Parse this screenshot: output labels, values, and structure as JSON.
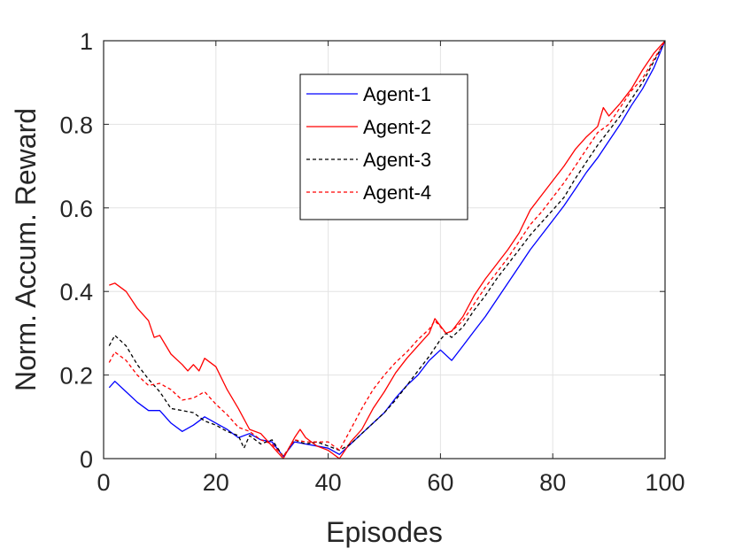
{
  "chart_data": {
    "type": "line",
    "title": "",
    "xlabel": "Episodes",
    "ylabel": "Norm. Accum. Reward",
    "xlim": [
      0,
      100
    ],
    "ylim": [
      0,
      1
    ],
    "xticks": [
      "0",
      "20",
      "40",
      "60",
      "80",
      "100"
    ],
    "yticks": [
      "0",
      "0.2",
      "0.4",
      "0.6",
      "0.8",
      "1"
    ],
    "grid": true,
    "legend_position": "top-center",
    "series": [
      {
        "name": "Agent-1",
        "color": "#0000ff",
        "dash": "solid",
        "x": [
          1,
          2,
          4,
          6,
          8,
          10,
          12,
          14,
          16,
          18,
          20,
          22,
          24,
          26,
          28,
          30,
          32,
          34,
          36,
          38,
          40,
          42,
          44,
          46,
          48,
          50,
          52,
          54,
          56,
          58,
          60,
          62,
          64,
          66,
          68,
          70,
          72,
          74,
          76,
          78,
          80,
          82,
          84,
          86,
          88,
          90,
          92,
          94,
          96,
          98,
          100
        ],
        "y": [
          0.17,
          0.185,
          0.16,
          0.135,
          0.115,
          0.115,
          0.085,
          0.065,
          0.08,
          0.1,
          0.085,
          0.07,
          0.05,
          0.06,
          0.045,
          0.04,
          0.005,
          0.04,
          0.035,
          0.03,
          0.025,
          0.01,
          0.035,
          0.06,
          0.085,
          0.11,
          0.145,
          0.175,
          0.2,
          0.235,
          0.26,
          0.235,
          0.27,
          0.305,
          0.34,
          0.38,
          0.42,
          0.46,
          0.5,
          0.535,
          0.57,
          0.605,
          0.645,
          0.685,
          0.72,
          0.76,
          0.8,
          0.845,
          0.885,
          0.935,
          1.0
        ]
      },
      {
        "name": "Agent-2",
        "color": "#ff0000",
        "dash": "solid",
        "x": [
          1,
          2,
          4,
          6,
          8,
          9,
          10,
          12,
          14,
          15,
          16,
          17,
          18,
          20,
          22,
          24,
          26,
          28,
          30,
          32,
          34,
          35,
          36,
          38,
          40,
          42,
          44,
          46,
          48,
          50,
          52,
          54,
          56,
          58,
          59,
          61,
          62,
          64,
          66,
          68,
          70,
          72,
          74,
          76,
          78,
          80,
          82,
          84,
          86,
          88,
          89,
          90,
          92,
          94,
          96,
          98,
          100
        ],
        "y": [
          0.415,
          0.42,
          0.4,
          0.36,
          0.33,
          0.29,
          0.295,
          0.25,
          0.225,
          0.21,
          0.225,
          0.21,
          0.24,
          0.22,
          0.165,
          0.12,
          0.07,
          0.06,
          0.03,
          0.0,
          0.05,
          0.07,
          0.05,
          0.03,
          0.02,
          0.0,
          0.04,
          0.07,
          0.12,
          0.16,
          0.205,
          0.24,
          0.27,
          0.3,
          0.335,
          0.3,
          0.305,
          0.34,
          0.39,
          0.43,
          0.465,
          0.5,
          0.54,
          0.595,
          0.63,
          0.665,
          0.7,
          0.74,
          0.77,
          0.795,
          0.84,
          0.82,
          0.85,
          0.885,
          0.93,
          0.97,
          1.0
        ]
      },
      {
        "name": "Agent-3",
        "color": "#000000",
        "dash": "4,3",
        "x": [
          1,
          2,
          4,
          6,
          8,
          10,
          12,
          14,
          16,
          18,
          20,
          22,
          24,
          25,
          26,
          28,
          30,
          32,
          34,
          36,
          38,
          40,
          42,
          44,
          46,
          48,
          50,
          52,
          54,
          56,
          58,
          60,
          61,
          62,
          64,
          66,
          68,
          70,
          72,
          74,
          76,
          78,
          80,
          82,
          84,
          86,
          88,
          90,
          92,
          94,
          96,
          98,
          100
        ],
        "y": [
          0.27,
          0.295,
          0.27,
          0.225,
          0.19,
          0.16,
          0.12,
          0.115,
          0.11,
          0.09,
          0.08,
          0.065,
          0.055,
          0.025,
          0.055,
          0.035,
          0.045,
          0.005,
          0.045,
          0.035,
          0.04,
          0.03,
          0.02,
          0.035,
          0.06,
          0.085,
          0.11,
          0.14,
          0.175,
          0.21,
          0.245,
          0.285,
          0.3,
          0.29,
          0.315,
          0.355,
          0.39,
          0.43,
          0.465,
          0.5,
          0.535,
          0.565,
          0.595,
          0.625,
          0.67,
          0.71,
          0.75,
          0.785,
          0.82,
          0.86,
          0.9,
          0.95,
          1.0
        ]
      },
      {
        "name": "Agent-4",
        "color": "#ff0000",
        "dash": "4,3",
        "x": [
          1,
          2,
          4,
          6,
          8,
          10,
          12,
          14,
          16,
          18,
          20,
          22,
          24,
          26,
          28,
          30,
          32,
          34,
          36,
          38,
          40,
          42,
          44,
          46,
          48,
          50,
          52,
          54,
          56,
          58,
          59,
          61,
          62,
          64,
          66,
          68,
          70,
          72,
          74,
          76,
          78,
          80,
          82,
          84,
          86,
          88,
          90,
          92,
          94,
          96,
          98,
          100
        ],
        "y": [
          0.23,
          0.255,
          0.235,
          0.2,
          0.175,
          0.18,
          0.165,
          0.14,
          0.145,
          0.16,
          0.13,
          0.105,
          0.075,
          0.065,
          0.045,
          0.035,
          0.005,
          0.045,
          0.04,
          0.04,
          0.04,
          0.02,
          0.07,
          0.12,
          0.165,
          0.2,
          0.23,
          0.255,
          0.285,
          0.31,
          0.33,
          0.3,
          0.305,
          0.33,
          0.37,
          0.41,
          0.445,
          0.48,
          0.52,
          0.56,
          0.59,
          0.625,
          0.66,
          0.7,
          0.74,
          0.78,
          0.8,
          0.84,
          0.88,
          0.91,
          0.955,
          1.0
        ]
      }
    ]
  }
}
